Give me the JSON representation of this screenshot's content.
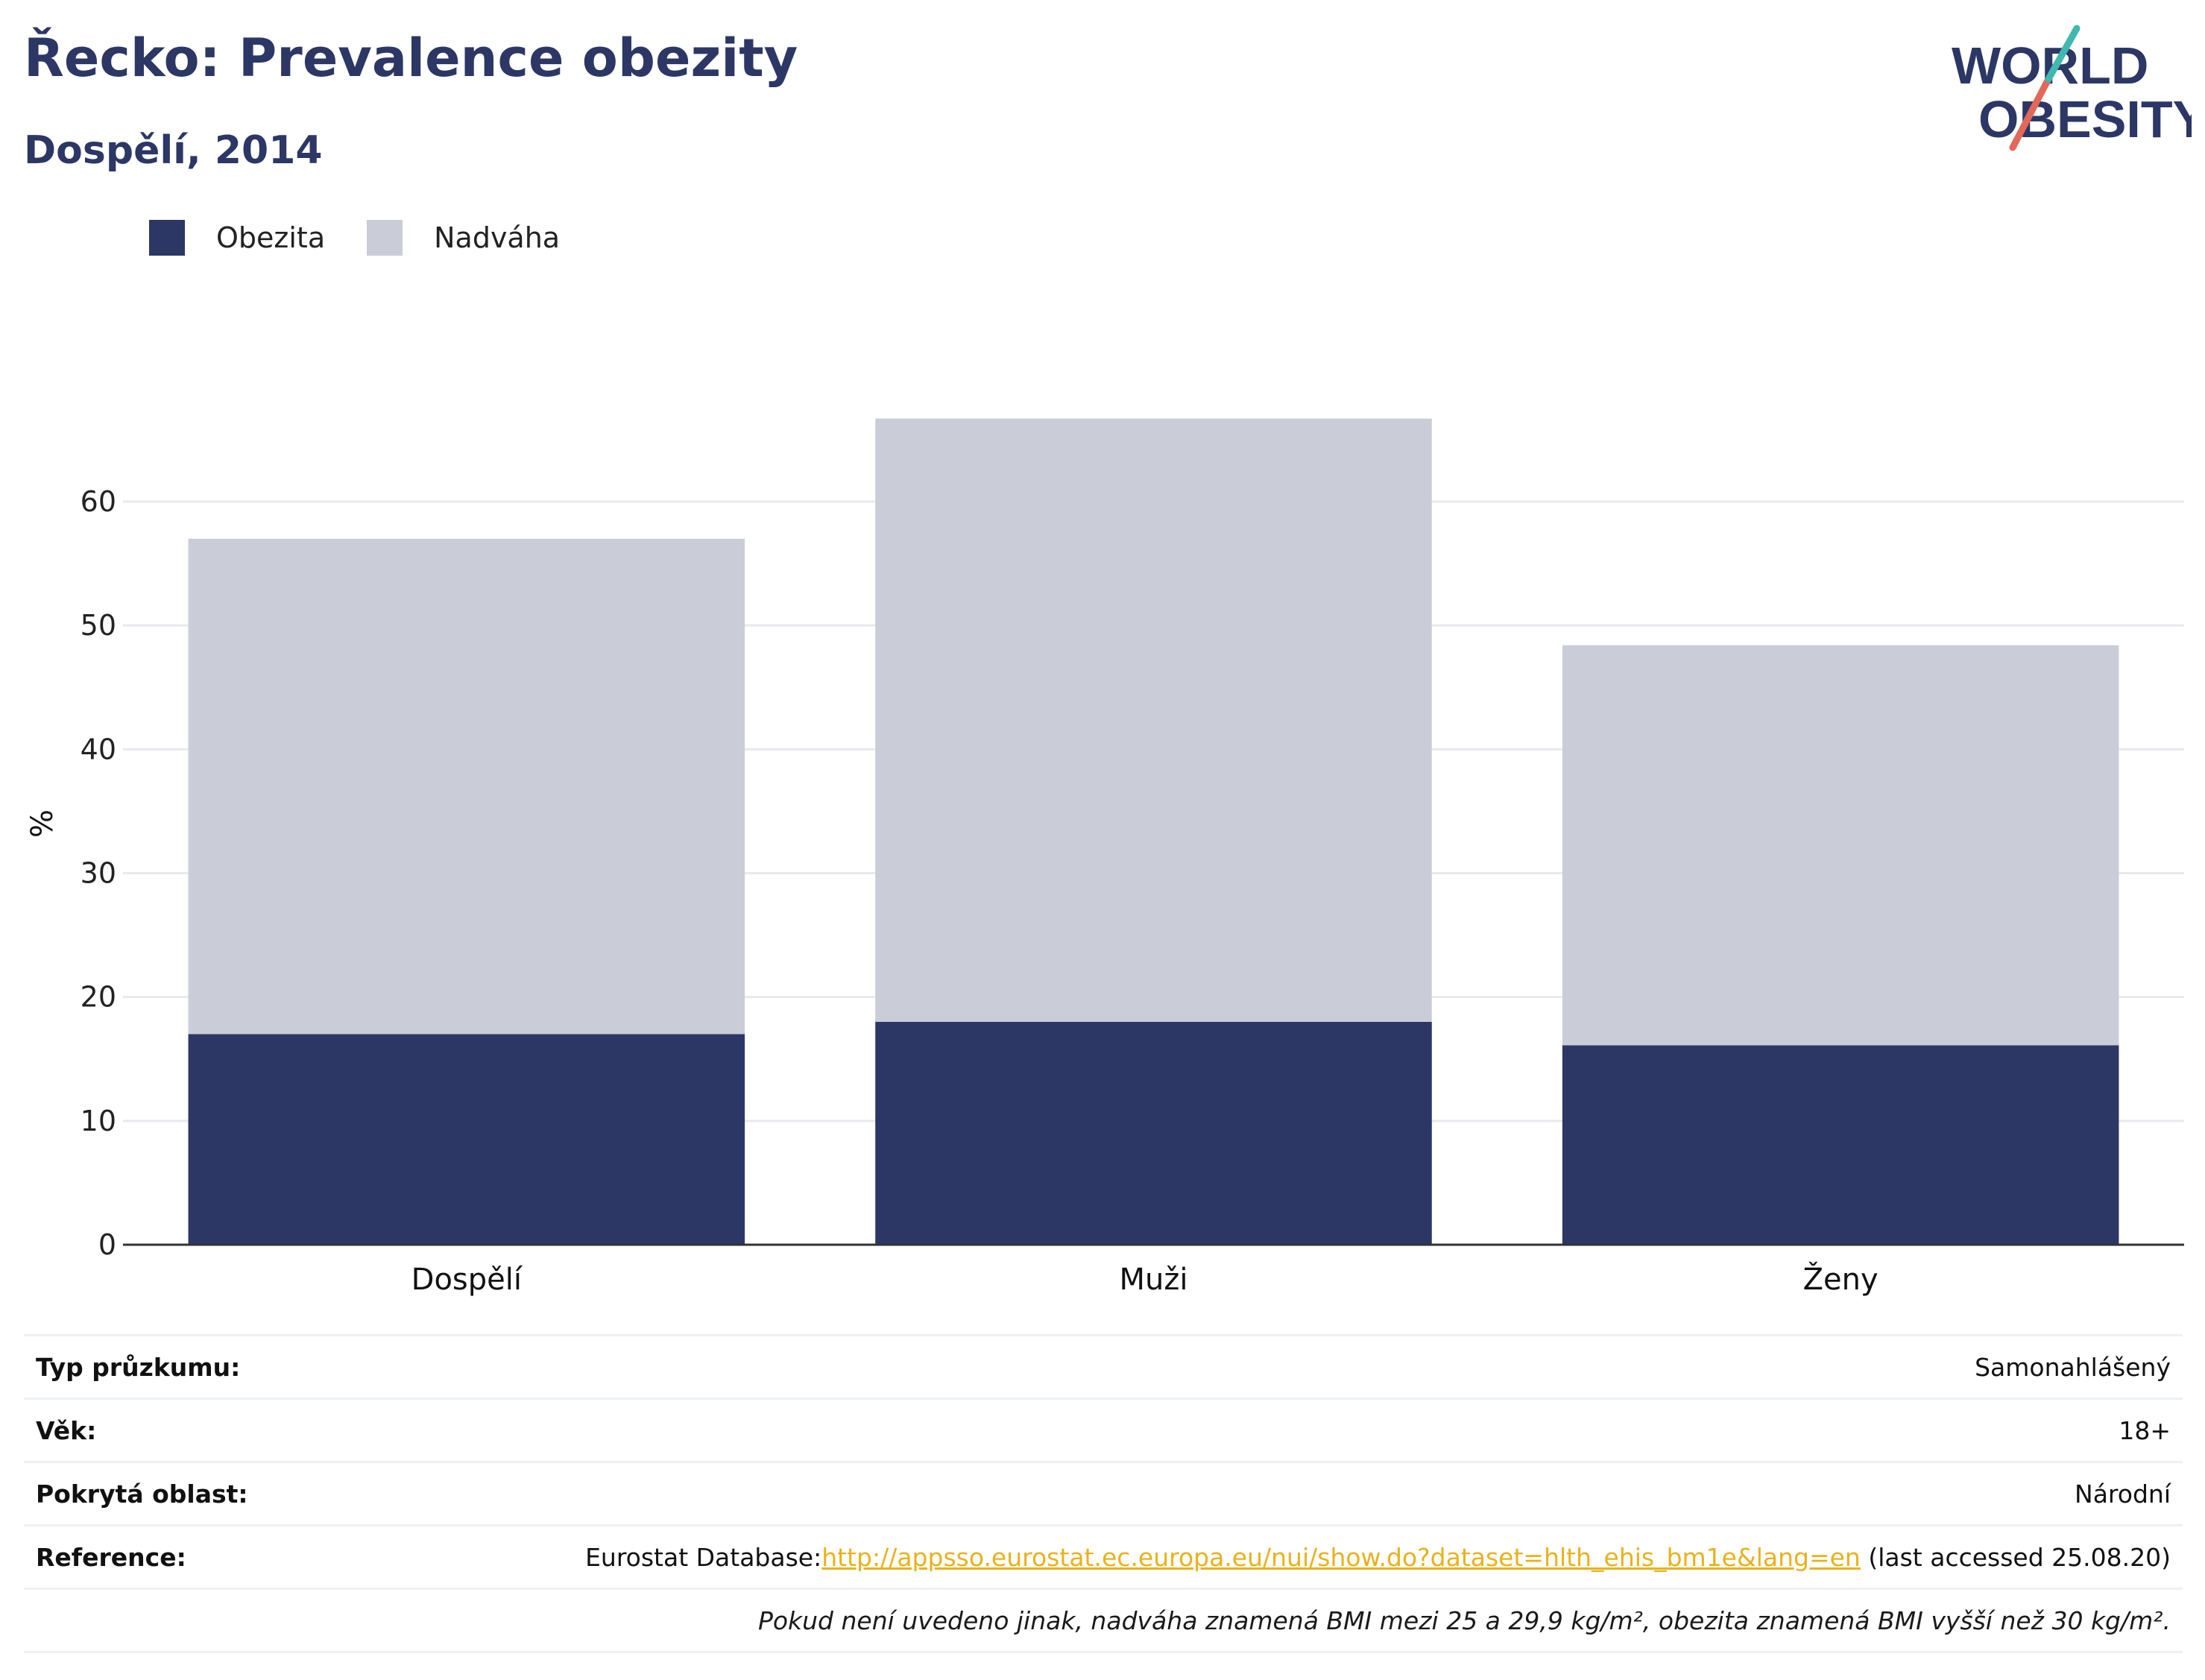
{
  "header": {
    "title": "Řecko: Prevalence obezity",
    "subtitle": "Dospělí, 2014"
  },
  "logo": {
    "line1": "WORLD",
    "line2": "OBESITY"
  },
  "legend": [
    {
      "label": "Obezita",
      "color": "#2c3765"
    },
    {
      "label": "Nadváha",
      "color": "#cacdd8"
    }
  ],
  "chart_data": {
    "type": "bar",
    "stacked": true,
    "categories": [
      "Dospělí",
      "Muži",
      "Ženy"
    ],
    "series": [
      {
        "name": "Obezita",
        "color": "#2c3765",
        "values": [
          17.0,
          18.0,
          16.1
        ]
      },
      {
        "name": "Nadváha",
        "color": "#cacdd8",
        "values": [
          40.0,
          48.7,
          32.3
        ]
      }
    ],
    "ylabel": "%",
    "yticks": [
      0,
      10,
      20,
      30,
      40,
      50,
      60
    ],
    "ylim": [
      0,
      68
    ],
    "grid": true,
    "legend_position": "top-left"
  },
  "footer": {
    "survey_type_label": "Typ průzkumu:",
    "survey_type_value": "Samonahlášený",
    "age_label": "Věk:",
    "age_value": "18+",
    "coverage_label": "Pokrytá oblast:",
    "coverage_value": "Národní",
    "reference_label": "Reference:",
    "reference_prefix": "Eurostat Database:",
    "reference_link": "http://appsso.eurostat.ec.europa.eu/nui/show.do?dataset=hlth_ehis_bm1e&lang=en",
    "reference_suffix": " (last accessed 25.08.20)",
    "note": "Pokud není uvedeno jinak, nadváha znamená BMI mezi 25 a 29,9 kg/m², obezita znamená BMI vyšší než 30 kg/m²."
  }
}
